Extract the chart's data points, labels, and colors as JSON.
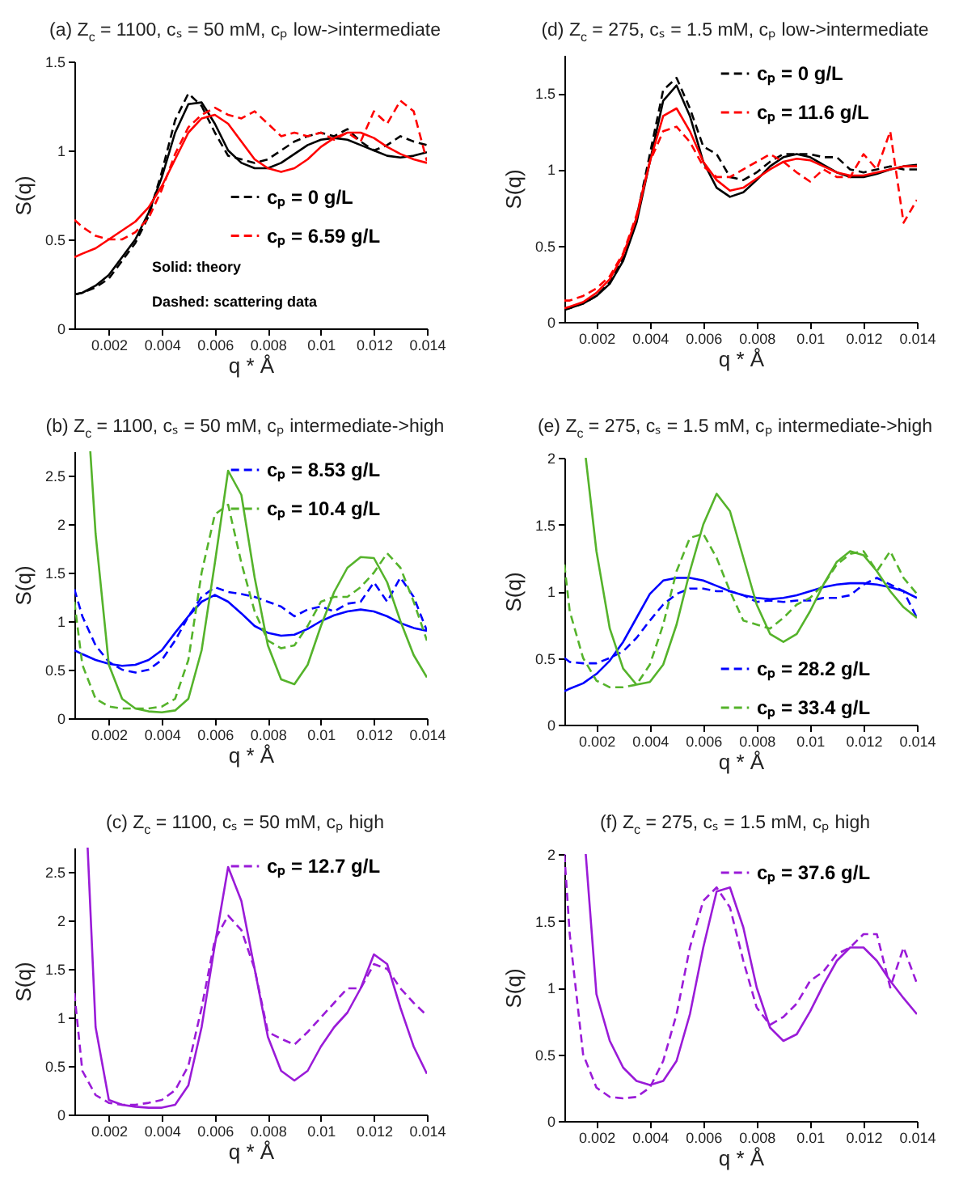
{
  "chart_data": [
    {
      "type": "line",
      "title": "(a) Z$_{c}$ = 1100, cₛ = 50 mM, cₚ low->intermediate",
      "xlabel": "q * Å",
      "ylabel": "S(q)",
      "xlim": [
        0.0007,
        0.014
      ],
      "ylim": [
        0,
        1.5
      ],
      "xticks": [
        0.002,
        0.004,
        0.006,
        0.008,
        0.01,
        0.012,
        0.014
      ],
      "yticks": [
        0,
        0.5,
        1,
        1.5
      ],
      "legend": "right",
      "annotations": [
        "Solid: theory",
        "Dashed: scattering data"
      ],
      "x": [
        0.0007,
        0.001,
        0.0015,
        0.002,
        0.0025,
        0.003,
        0.0035,
        0.004,
        0.0045,
        0.005,
        0.0055,
        0.006,
        0.0065,
        0.007,
        0.0075,
        0.008,
        0.0085,
        0.009,
        0.0095,
        0.01,
        0.0105,
        0.011,
        0.0115,
        0.012,
        0.0125,
        0.013,
        0.0135,
        0.014
      ],
      "series": [
        {
          "color": "#000000",
          "line_style": "solid",
          "values": [
            0.19,
            0.2,
            0.24,
            0.3,
            0.4,
            0.5,
            0.65,
            0.85,
            1.1,
            1.26,
            1.27,
            1.15,
            1.0,
            0.93,
            0.9,
            0.9,
            0.93,
            0.98,
            1.03,
            1.06,
            1.07,
            1.06,
            1.03,
            1.0,
            0.97,
            0.96,
            0.97,
            0.99
          ]
        },
        {
          "name": "cₚ = 0 g/L",
          "color": "#000000",
          "line_style": "dashed",
          "values": [
            0.19,
            0.2,
            0.23,
            0.28,
            0.38,
            0.48,
            0.63,
            0.88,
            1.17,
            1.32,
            1.25,
            1.1,
            0.97,
            0.95,
            0.93,
            0.95,
            1.0,
            1.05,
            1.08,
            1.1,
            1.08,
            1.12,
            1.05,
            1.0,
            1.03,
            1.08,
            1.05,
            1.03
          ]
        },
        {
          "color": "#ff0000",
          "line_style": "solid",
          "values": [
            0.4,
            0.42,
            0.45,
            0.5,
            0.55,
            0.6,
            0.68,
            0.8,
            0.95,
            1.1,
            1.18,
            1.2,
            1.15,
            1.05,
            0.95,
            0.9,
            0.88,
            0.9,
            0.95,
            1.02,
            1.07,
            1.1,
            1.1,
            1.07,
            1.02,
            0.98,
            0.95,
            0.93
          ]
        },
        {
          "name": "cₚ = 6.59 g/L",
          "color": "#ff0000",
          "line_style": "dashed",
          "values": [
            0.61,
            0.57,
            0.52,
            0.5,
            0.5,
            0.54,
            0.62,
            0.78,
            0.98,
            1.13,
            1.2,
            1.24,
            1.2,
            1.18,
            1.22,
            1.15,
            1.08,
            1.1,
            1.08,
            1.1,
            1.06,
            1.1,
            1.05,
            1.22,
            1.15,
            1.28,
            1.22,
            0.94
          ]
        }
      ]
    },
    {
      "type": "line",
      "title": "(d) Z$_{c}$ = 275, cₛ = 1.5 mM, cₚ low->intermediate",
      "xlabel": "q * Å",
      "ylabel": "S(q)",
      "xlim": [
        0.0008,
        0.014
      ],
      "ylim": [
        0,
        1.75
      ],
      "xticks": [
        0.002,
        0.004,
        0.006,
        0.008,
        0.01,
        0.012,
        0.014
      ],
      "yticks": [
        0,
        0.5,
        1,
        1.5
      ],
      "legend": "top right",
      "x": [
        0.0008,
        0.001,
        0.0015,
        0.002,
        0.0025,
        0.003,
        0.0035,
        0.004,
        0.0045,
        0.005,
        0.0055,
        0.006,
        0.0065,
        0.007,
        0.0075,
        0.008,
        0.0085,
        0.009,
        0.0095,
        0.01,
        0.0105,
        0.011,
        0.0115,
        0.012,
        0.0125,
        0.013,
        0.0135,
        0.014
      ],
      "series": [
        {
          "color": "#000000",
          "line_style": "solid",
          "values": [
            0.08,
            0.09,
            0.12,
            0.17,
            0.25,
            0.4,
            0.65,
            1.05,
            1.45,
            1.55,
            1.35,
            1.05,
            0.88,
            0.82,
            0.85,
            0.93,
            1.02,
            1.08,
            1.1,
            1.08,
            1.03,
            0.98,
            0.95,
            0.95,
            0.97,
            1.0,
            1.02,
            1.03
          ]
        },
        {
          "name": "cₚ = 0 g/L",
          "color": "#000000",
          "line_style": "dashed",
          "values": [
            0.08,
            0.09,
            0.12,
            0.17,
            0.26,
            0.42,
            0.68,
            1.1,
            1.52,
            1.6,
            1.4,
            1.15,
            1.1,
            0.95,
            0.93,
            0.98,
            1.05,
            1.1,
            1.1,
            1.1,
            1.08,
            1.08,
            1.0,
            0.98,
            1.0,
            1.02,
            1.0,
            1.0
          ]
        },
        {
          "color": "#ff0000",
          "line_style": "solid",
          "values": [
            0.09,
            0.1,
            0.13,
            0.19,
            0.28,
            0.44,
            0.68,
            1.05,
            1.35,
            1.4,
            1.25,
            1.05,
            0.93,
            0.86,
            0.88,
            0.94,
            1.0,
            1.05,
            1.07,
            1.06,
            1.02,
            0.98,
            0.96,
            0.96,
            0.98,
            1.0,
            1.02,
            1.02
          ]
        },
        {
          "name": "cₚ = 11.6 g/L",
          "color": "#ff0000",
          "line_style": "dashed",
          "values": [
            0.14,
            0.14,
            0.17,
            0.22,
            0.3,
            0.45,
            0.7,
            1.05,
            1.25,
            1.28,
            1.18,
            1.02,
            0.95,
            0.95,
            1.0,
            1.05,
            1.1,
            1.05,
            0.98,
            0.92,
            1.0,
            0.95,
            0.95,
            1.1,
            1.0,
            1.25,
            0.65,
            0.8
          ]
        }
      ]
    },
    {
      "type": "line",
      "title": "(b) Z$_{c}$ = 1100, cₛ = 50 mM, cₚ intermediate->high",
      "xlabel": "q * Å",
      "ylabel": "S(q)",
      "xlim": [
        0.0007,
        0.014
      ],
      "ylim": [
        0,
        2.75
      ],
      "xticks": [
        0.002,
        0.004,
        0.006,
        0.008,
        0.01,
        0.012,
        0.014
      ],
      "yticks": [
        0,
        0.5,
        1,
        1.5,
        2,
        2.5
      ],
      "legend": "top right",
      "x": [
        0.0007,
        0.001,
        0.0015,
        0.002,
        0.0025,
        0.003,
        0.0035,
        0.004,
        0.0045,
        0.005,
        0.0055,
        0.006,
        0.0065,
        0.007,
        0.0075,
        0.008,
        0.0085,
        0.009,
        0.0095,
        0.01,
        0.0105,
        0.011,
        0.0115,
        0.012,
        0.0125,
        0.013,
        0.0135,
        0.014
      ],
      "series": [
        {
          "color": "#0000ff",
          "line_style": "solid",
          "values": [
            0.7,
            0.66,
            0.6,
            0.56,
            0.54,
            0.55,
            0.6,
            0.7,
            0.88,
            1.05,
            1.2,
            1.27,
            1.2,
            1.08,
            0.95,
            0.88,
            0.85,
            0.86,
            0.92,
            1.0,
            1.06,
            1.1,
            1.12,
            1.1,
            1.05,
            0.98,
            0.93,
            0.9
          ]
        },
        {
          "name": "cₚ = 8.53 g/L",
          "color": "#0000ff",
          "line_style": "dashed",
          "values": [
            1.33,
            1.05,
            0.75,
            0.58,
            0.5,
            0.47,
            0.5,
            0.6,
            0.8,
            1.05,
            1.25,
            1.35,
            1.3,
            1.28,
            1.25,
            1.2,
            1.15,
            1.05,
            1.12,
            1.15,
            1.1,
            1.18,
            1.2,
            1.4,
            1.2,
            1.45,
            1.25,
            0.9
          ]
        },
        {
          "color": "#55b32b",
          "line_style": "solid",
          "x": [
            0.0013,
            0.0015,
            0.002,
            0.0025,
            0.003,
            0.0035,
            0.004,
            0.0045,
            0.005,
            0.0055,
            0.006,
            0.0065,
            0.007,
            0.0075,
            0.008,
            0.0085,
            0.009,
            0.0095,
            0.01,
            0.0105,
            0.011,
            0.0115,
            0.012,
            0.0125,
            0.013,
            0.0135,
            0.014
          ],
          "values": [
            2.75,
            1.9,
            0.55,
            0.2,
            0.1,
            0.07,
            0.06,
            0.08,
            0.2,
            0.7,
            1.6,
            2.55,
            2.3,
            1.45,
            0.75,
            0.4,
            0.35,
            0.55,
            0.95,
            1.3,
            1.55,
            1.66,
            1.65,
            1.4,
            1.0,
            0.65,
            0.42
          ]
        },
        {
          "name": "cₚ = 10.4 g/L",
          "color": "#55b32b",
          "line_style": "dashed",
          "values": [
            1.2,
            0.55,
            0.2,
            0.12,
            0.1,
            0.1,
            0.1,
            0.12,
            0.2,
            0.6,
            1.5,
            2.1,
            2.2,
            1.6,
            1.1,
            0.8,
            0.72,
            0.75,
            0.95,
            1.2,
            1.25,
            1.25,
            1.35,
            1.5,
            1.7,
            1.55,
            1.2,
            0.8
          ]
        }
      ]
    },
    {
      "type": "line",
      "title": "(e) Z$_{c}$ = 275, cₛ = 1.5 mM, cₚ intermediate->high",
      "xlabel": "q * Å",
      "ylabel": "S(q)",
      "xlim": [
        0.0008,
        0.014
      ],
      "ylim": [
        0,
        2
      ],
      "xticks": [
        0.002,
        0.004,
        0.006,
        0.008,
        0.01,
        0.012,
        0.014
      ],
      "yticks": [
        0,
        0.5,
        1,
        1.5,
        2
      ],
      "legend": "bottom right",
      "x": [
        0.0008,
        0.001,
        0.0015,
        0.002,
        0.0025,
        0.003,
        0.0035,
        0.004,
        0.0045,
        0.005,
        0.0055,
        0.006,
        0.0065,
        0.007,
        0.0075,
        0.008,
        0.0085,
        0.009,
        0.0095,
        0.01,
        0.0105,
        0.011,
        0.0115,
        0.012,
        0.0125,
        0.013,
        0.0135,
        0.014
      ],
      "series": [
        {
          "color": "#0000ff",
          "line_style": "solid",
          "values": [
            0.25,
            0.27,
            0.31,
            0.38,
            0.48,
            0.62,
            0.8,
            0.98,
            1.08,
            1.1,
            1.1,
            1.08,
            1.04,
            1.0,
            0.97,
            0.95,
            0.94,
            0.95,
            0.97,
            1.0,
            1.03,
            1.05,
            1.06,
            1.06,
            1.05,
            1.03,
            1.0,
            0.95
          ]
        },
        {
          "name": "cₚ = 28.2 g/L",
          "color": "#0000ff",
          "line_style": "dashed",
          "values": [
            0.5,
            0.47,
            0.46,
            0.46,
            0.5,
            0.55,
            0.65,
            0.78,
            0.9,
            0.98,
            1.02,
            1.02,
            1.0,
            1.0,
            0.97,
            0.92,
            0.93,
            0.92,
            0.93,
            0.93,
            0.95,
            0.95,
            0.97,
            1.05,
            1.1,
            1.05,
            1.0,
            0.8
          ]
        },
        {
          "color": "#55b32b",
          "line_style": "solid",
          "x": [
            0.0016,
            0.002,
            0.0025,
            0.003,
            0.0035,
            0.004,
            0.0045,
            0.005,
            0.0055,
            0.006,
            0.0065,
            0.007,
            0.0075,
            0.008,
            0.0085,
            0.009,
            0.0095,
            0.01,
            0.0105,
            0.011,
            0.0115,
            0.012,
            0.0125,
            0.013,
            0.0135,
            0.014
          ],
          "values": [
            2.0,
            1.3,
            0.72,
            0.42,
            0.3,
            0.32,
            0.45,
            0.75,
            1.15,
            1.5,
            1.73,
            1.6,
            1.25,
            0.9,
            0.68,
            0.62,
            0.68,
            0.85,
            1.05,
            1.22,
            1.3,
            1.27,
            1.15,
            1.0,
            0.88,
            0.8
          ]
        },
        {
          "name": "cₚ = 33.4 g/L",
          "color": "#55b32b",
          "line_style": "dashed",
          "values": [
            1.2,
            0.85,
            0.5,
            0.33,
            0.28,
            0.28,
            0.3,
            0.45,
            0.75,
            1.15,
            1.4,
            1.43,
            1.25,
            1.0,
            0.78,
            0.75,
            0.72,
            0.8,
            0.9,
            0.95,
            1.05,
            1.2,
            1.28,
            1.3,
            1.15,
            1.3,
            1.1,
            0.98
          ]
        }
      ]
    },
    {
      "type": "line",
      "title": "(c) Z$_{c}$ = 1100, cₛ = 50 mM, cₚ high",
      "xlabel": "q * Å",
      "ylabel": "S(q)",
      "xlim": [
        0.0007,
        0.014
      ],
      "ylim": [
        0,
        2.75
      ],
      "xticks": [
        0.002,
        0.004,
        0.006,
        0.008,
        0.01,
        0.012,
        0.014
      ],
      "yticks": [
        0,
        0.5,
        1,
        1.5,
        2,
        2.5
      ],
      "legend": "top right",
      "x": [
        0.0007,
        0.001,
        0.0015,
        0.002,
        0.0025,
        0.003,
        0.0035,
        0.004,
        0.0045,
        0.005,
        0.0055,
        0.006,
        0.0065,
        0.007,
        0.0075,
        0.008,
        0.0085,
        0.009,
        0.0095,
        0.01,
        0.0105,
        0.011,
        0.0115,
        0.012,
        0.0125,
        0.013,
        0.0135,
        0.014
      ],
      "series": [
        {
          "color": "#9a1bd8",
          "line_style": "solid",
          "x": [
            0.0012,
            0.0015,
            0.002,
            0.0025,
            0.003,
            0.0035,
            0.004,
            0.0045,
            0.005,
            0.0055,
            0.006,
            0.0065,
            0.007,
            0.0075,
            0.008,
            0.0085,
            0.009,
            0.0095,
            0.01,
            0.0105,
            0.011,
            0.0115,
            0.012,
            0.0125,
            0.013,
            0.0135,
            0.014
          ],
          "values": [
            2.75,
            0.9,
            0.15,
            0.1,
            0.08,
            0.07,
            0.07,
            0.1,
            0.3,
            0.9,
            1.75,
            2.55,
            2.2,
            1.5,
            0.8,
            0.45,
            0.35,
            0.45,
            0.7,
            0.9,
            1.05,
            1.3,
            1.65,
            1.55,
            1.1,
            0.7,
            0.42
          ]
        },
        {
          "name": "cₚ = 12.7 g/L",
          "color": "#9a1bd8",
          "line_style": "dashed",
          "values": [
            1.25,
            0.45,
            0.2,
            0.12,
            0.1,
            0.1,
            0.12,
            0.15,
            0.25,
            0.5,
            1.1,
            1.8,
            2.05,
            1.9,
            1.5,
            0.85,
            0.78,
            0.72,
            0.85,
            1.0,
            1.15,
            1.3,
            1.3,
            1.55,
            1.5,
            1.3,
            1.15,
            1.02
          ]
        }
      ]
    },
    {
      "type": "line",
      "title": "(f) Z$_{c}$ = 275, cₛ = 1.5 mM, cₚ high",
      "xlabel": "q * Å",
      "ylabel": "S(q)",
      "xlim": [
        0.0008,
        0.014
      ],
      "ylim": [
        0,
        2
      ],
      "xticks": [
        0.002,
        0.004,
        0.006,
        0.008,
        0.01,
        0.012,
        0.014
      ],
      "yticks": [
        0,
        0.5,
        1,
        1.5,
        2
      ],
      "legend": "top right",
      "x": [
        0.0008,
        0.001,
        0.0015,
        0.002,
        0.0025,
        0.003,
        0.0035,
        0.004,
        0.0045,
        0.005,
        0.0055,
        0.006,
        0.0065,
        0.007,
        0.0075,
        0.008,
        0.0085,
        0.009,
        0.0095,
        0.01,
        0.0105,
        0.011,
        0.0115,
        0.012,
        0.0125,
        0.013,
        0.0135,
        0.014
      ],
      "series": [
        {
          "color": "#9a1bd8",
          "line_style": "solid",
          "x": [
            0.0016,
            0.002,
            0.0025,
            0.003,
            0.0035,
            0.004,
            0.0045,
            0.005,
            0.0055,
            0.006,
            0.0065,
            0.007,
            0.0075,
            0.008,
            0.0085,
            0.009,
            0.0095,
            0.01,
            0.0105,
            0.011,
            0.0115,
            0.012,
            0.0125,
            0.013,
            0.0135,
            0.014
          ],
          "values": [
            2.0,
            0.95,
            0.6,
            0.4,
            0.3,
            0.27,
            0.3,
            0.45,
            0.8,
            1.3,
            1.72,
            1.75,
            1.45,
            1.0,
            0.7,
            0.6,
            0.65,
            0.82,
            1.02,
            1.2,
            1.3,
            1.3,
            1.2,
            1.05,
            0.92,
            0.8
          ]
        },
        {
          "name": "cₚ = 37.6 g/L",
          "color": "#9a1bd8",
          "line_style": "dashed",
          "values": [
            2.0,
            1.4,
            0.5,
            0.25,
            0.18,
            0.17,
            0.18,
            0.25,
            0.45,
            0.8,
            1.3,
            1.65,
            1.75,
            1.6,
            1.2,
            0.85,
            0.72,
            0.78,
            0.88,
            1.05,
            1.12,
            1.25,
            1.3,
            1.4,
            1.4,
            1.0,
            1.3,
            1.03
          ]
        }
      ]
    }
  ]
}
